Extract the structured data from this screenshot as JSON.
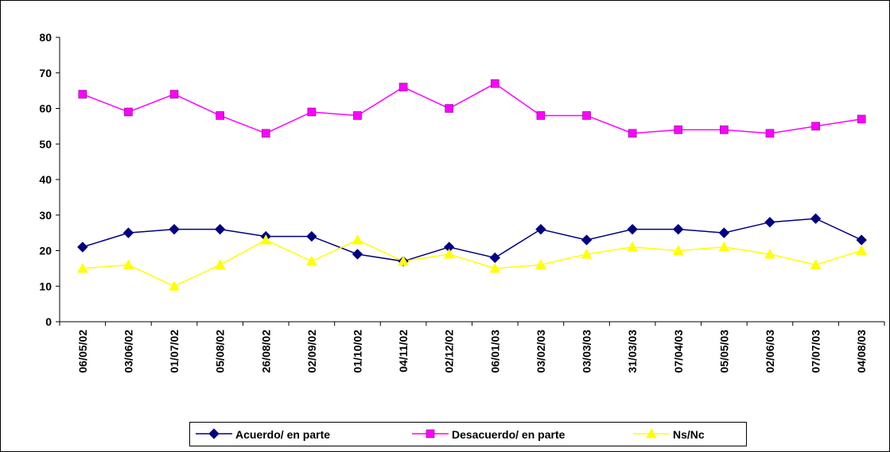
{
  "chart_data": {
    "type": "line",
    "categories": [
      "06/05/02",
      "03/06/02",
      "01/07/02",
      "05/08/02",
      "26/08/02",
      "02/09/02",
      "01/10/02",
      "04/11/02",
      "02/12/02",
      "06/01/03",
      "03/02/03",
      "03/03/03",
      "31/03/03",
      "07/04/03",
      "05/05/03",
      "02/06/03",
      "07/07/03",
      "04/08/03"
    ],
    "series": [
      {
        "name": "Acuerdo/ en parte",
        "color": "#000080",
        "marker": "diamond",
        "values": [
          21,
          25,
          26,
          26,
          24,
          24,
          19,
          17,
          21,
          18,
          26,
          23,
          26,
          26,
          25,
          28,
          29,
          23
        ]
      },
      {
        "name": "Desacuerdo/ en parte",
        "color": "#ff00ff",
        "marker": "square",
        "values": [
          64,
          59,
          64,
          58,
          53,
          59,
          58,
          66,
          60,
          67,
          58,
          58,
          53,
          54,
          54,
          53,
          55,
          57
        ]
      },
      {
        "name": "Ns/Nc",
        "color": "#ffff00",
        "marker": "triangle",
        "values": [
          15,
          16,
          10,
          16,
          23,
          17,
          23,
          17,
          19,
          15,
          16,
          19,
          21,
          20,
          21,
          19,
          16,
          20
        ]
      }
    ],
    "ylim": [
      0,
      80
    ],
    "yticks": [
      0,
      10,
      20,
      30,
      40,
      50,
      60,
      70,
      80
    ],
    "grid": false,
    "legend": "bottom"
  }
}
